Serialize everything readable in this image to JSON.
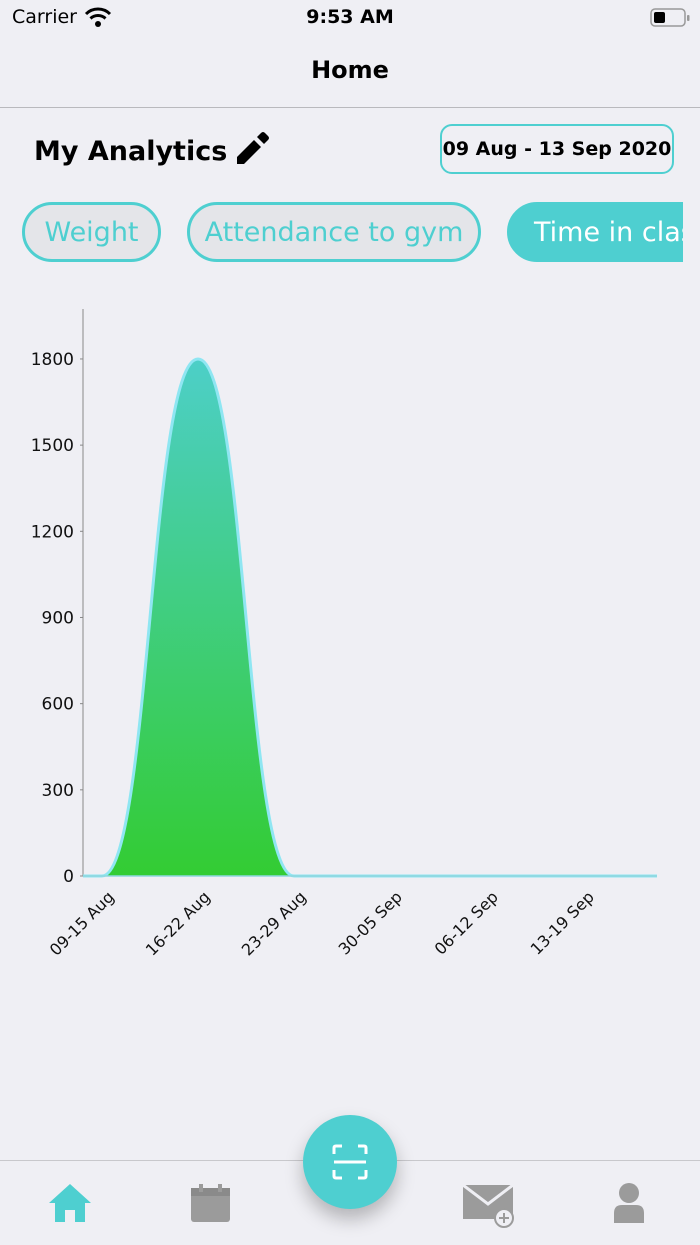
{
  "status_bar": {
    "carrier": "Carrier",
    "time": "9:53 AM"
  },
  "header": {
    "title": "Home"
  },
  "analytics": {
    "title": "My Analytics",
    "date_range": "09 Aug - 13 Sep 2020"
  },
  "tabs": [
    {
      "label": "Weight",
      "active": false
    },
    {
      "label": "Attendance to gym",
      "active": false
    },
    {
      "label": "Time in class",
      "active": true
    }
  ],
  "chart_data": {
    "type": "area",
    "categories": [
      "09-15 Aug",
      "16-22 Aug",
      "23-29 Aug",
      "30-05 Sep",
      "06-12 Sep",
      "13-19 Sep"
    ],
    "values": [
      0,
      1800,
      0,
      0,
      0,
      0
    ],
    "ylim": [
      0,
      1960
    ],
    "yticks": [
      0,
      300,
      600,
      900,
      1200,
      1500,
      1800
    ],
    "color_top": "#4dcfc8",
    "color_bottom": "#33cc33",
    "line_color": "#8fe6f2"
  }
}
